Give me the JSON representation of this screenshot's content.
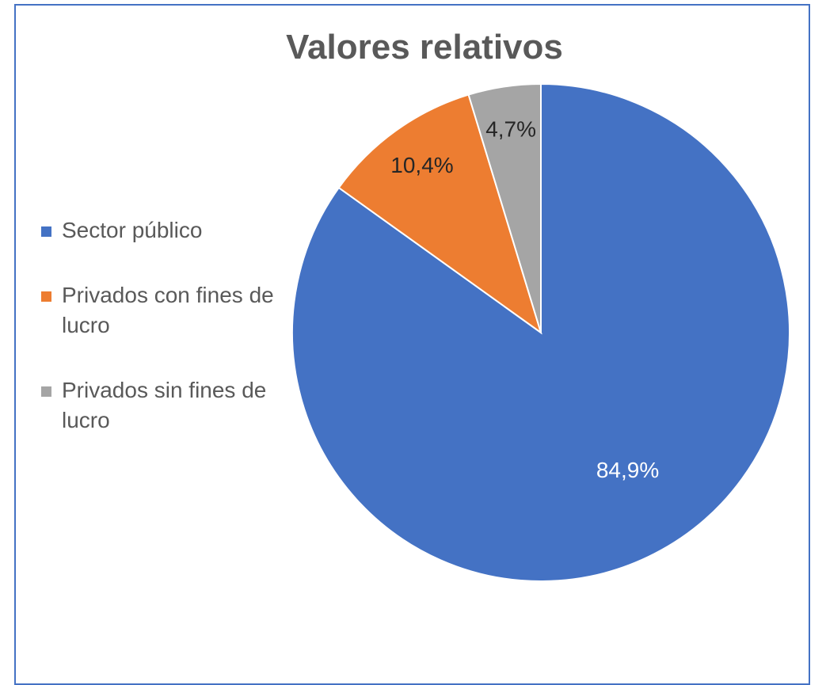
{
  "chart_data": {
    "type": "pie",
    "title": "Valores relativos",
    "categories": [
      "Sector público",
      "Privados con fines de lucro",
      "Privados sin fines de lucro"
    ],
    "values": [
      84.9,
      10.4,
      4.7
    ],
    "value_labels": [
      "84,9%",
      "10,4%",
      "4,7%"
    ],
    "colors": [
      "#4472c4",
      "#ed7d31",
      "#a5a5a5"
    ],
    "label_colors": [
      "#ffffff",
      "#262626",
      "#262626"
    ],
    "legend": "left"
  }
}
